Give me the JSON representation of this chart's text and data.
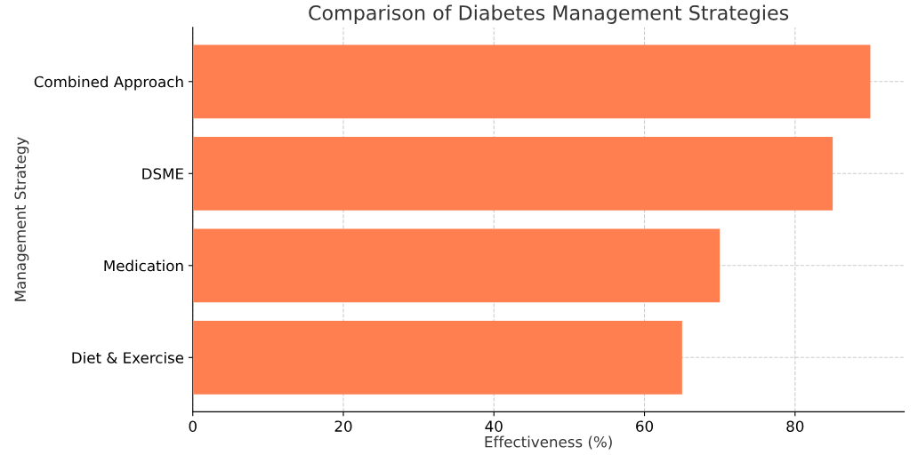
{
  "chart_data": {
    "type": "bar",
    "orientation": "horizontal",
    "title": "Comparison of Diabetes Management Strategies",
    "xlabel": "Effectiveness (%)",
    "ylabel": "Management Strategy",
    "categories": [
      "Combined Approach",
      "DSME",
      "Medication",
      "Diet & Exercise"
    ],
    "values": [
      90,
      85,
      70,
      65
    ],
    "color": "#ff7f50",
    "xlim": [
      0,
      94.5
    ],
    "xticks": [
      0,
      20,
      40,
      60,
      80
    ],
    "grid": true
  }
}
